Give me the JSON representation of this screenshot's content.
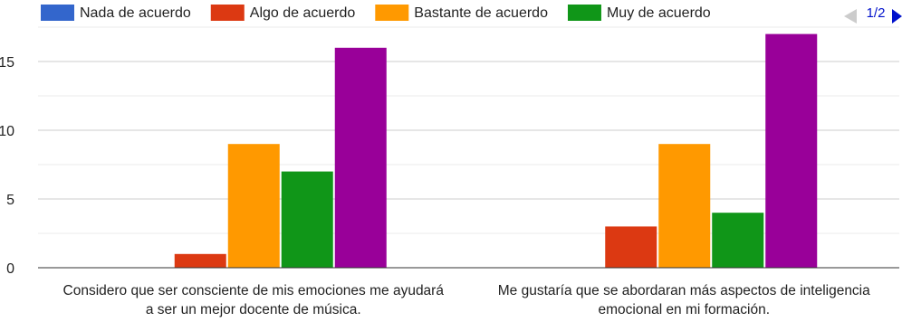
{
  "chart_data": {
    "type": "bar",
    "categories": [
      [
        "Considero que ser consciente de mis emociones me ayudará",
        "a ser un mejor docente de música."
      ],
      [
        "Me gustaría que se abordaran más aspectos de inteligencia",
        "emocional en mi formación."
      ]
    ],
    "series": [
      {
        "name": "Nada de acuerdo",
        "color": "#3366cc",
        "values": [
          0,
          0
        ]
      },
      {
        "name": "Algo de acuerdo",
        "color": "#dc3912",
        "values": [
          1,
          3
        ]
      },
      {
        "name": "Bastante de acuerdo",
        "color": "#ff9900",
        "values": [
          9,
          9
        ]
      },
      {
        "name": "Muy de acuerdo",
        "color": "#109618",
        "values": [
          7,
          4
        ]
      },
      {
        "name": "",
        "color": "#990099",
        "values": [
          16,
          17
        ]
      }
    ],
    "y_ticks": [
      0,
      5,
      10,
      15
    ],
    "ylim": [
      0,
      17.5
    ],
    "grid": true,
    "legend_position": "top",
    "legend_page": "1/2"
  }
}
